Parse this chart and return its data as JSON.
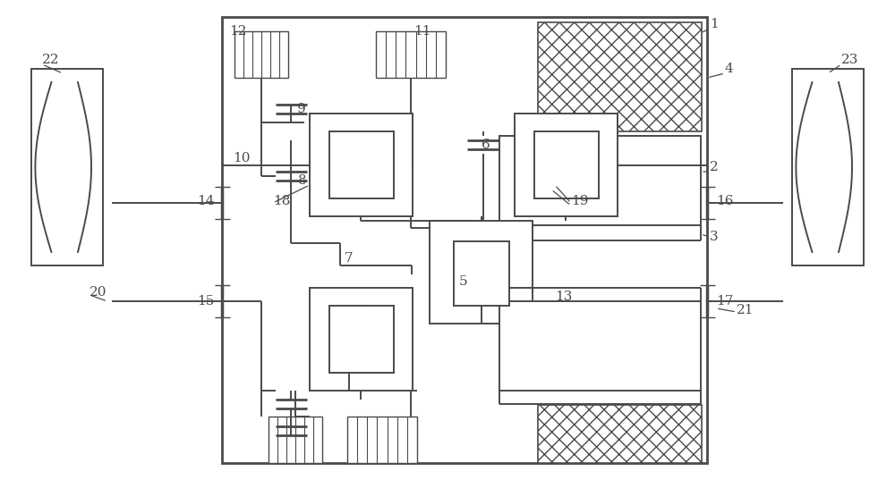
{
  "bg_color": "#ffffff",
  "line_color": "#4a4a4a",
  "lw": 1.4,
  "fig_w": 10.0,
  "fig_h": 5.37
}
